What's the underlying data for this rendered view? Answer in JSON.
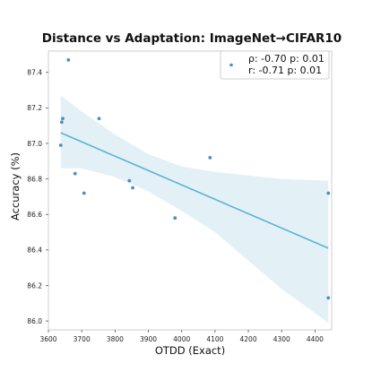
{
  "chart_data": {
    "type": "scatter",
    "title": "Distance vs Adaptation: ImageNet→CIFAR10",
    "xlabel": "OTDD (Exact)",
    "ylabel": "Accuracy (%)",
    "xlim": [
      3600,
      4450
    ],
    "ylim": [
      85.95,
      87.52
    ],
    "x_ticks": [
      "3600",
      "3700",
      "3800",
      "3900",
      "4000",
      "4100",
      "4200",
      "4300",
      "4400"
    ],
    "y_ticks": [
      "86.0",
      "86.2",
      "86.4",
      "86.6",
      "86.8",
      "87.0",
      "87.2",
      "87.4"
    ],
    "grid": false,
    "legend_position": "top-right",
    "legend": {
      "line1": "ρ: -0.70  p: 0.01",
      "line2": "r: -0.71  p: 0.01"
    },
    "points": [
      {
        "x": 3637,
        "y": 86.99
      },
      {
        "x": 3640,
        "y": 87.12
      },
      {
        "x": 3643,
        "y": 87.14
      },
      {
        "x": 3660,
        "y": 87.47
      },
      {
        "x": 3680,
        "y": 86.83
      },
      {
        "x": 3707,
        "y": 86.72
      },
      {
        "x": 3752,
        "y": 87.14
      },
      {
        "x": 3843,
        "y": 86.79
      },
      {
        "x": 3853,
        "y": 86.75
      },
      {
        "x": 3980,
        "y": 86.58
      },
      {
        "x": 4085,
        "y": 86.92
      },
      {
        "x": 4440,
        "y": 86.72
      },
      {
        "x": 4440,
        "y": 86.13
      }
    ],
    "regression": {
      "x": [
        3637,
        4440
      ],
      "y": [
        87.06,
        86.41
      ]
    },
    "confidence_band": {
      "x": [
        3637,
        3700,
        3800,
        3900,
        4000,
        4100,
        4200,
        4300,
        4440
      ],
      "upper": [
        87.27,
        87.18,
        87.05,
        86.94,
        86.87,
        86.84,
        86.82,
        86.8,
        86.79
      ],
      "lower": [
        86.86,
        86.86,
        86.81,
        86.73,
        86.62,
        86.5,
        86.34,
        86.18,
        85.99
      ]
    },
    "colors": {
      "points": "#4a90c2",
      "regression": "#5ab4d0",
      "band": "#e3f1f7"
    }
  }
}
